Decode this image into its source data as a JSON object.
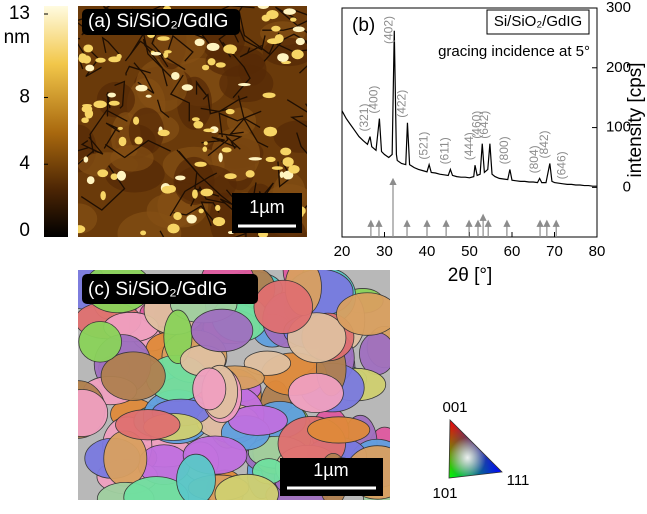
{
  "panel_a": {
    "label": "(a) Si/SiO₂/GdIG",
    "scale_bar": "1µm",
    "colorbar": {
      "unit": "nm",
      "lim": [
        0,
        13
      ],
      "ticks": [
        0,
        4,
        8,
        13
      ]
    }
  },
  "chart_data": {
    "type": "line",
    "title": "(b)",
    "inset_label": "Si/SiO₂/GdIG",
    "annotation": "gracing incidence at 5°",
    "x_label": "2θ [°]",
    "y_label": "intensity [cps]",
    "xlim": [
      20,
      80
    ],
    "xticks": [
      20,
      30,
      40,
      50,
      60,
      70,
      80
    ],
    "ylim": [
      -83,
      300
    ],
    "yticks": [
      0,
      100,
      200,
      300
    ],
    "y_axis_side": "right",
    "x": [
      20,
      21,
      22,
      23,
      24,
      25,
      26,
      26.6,
      27,
      28,
      28.8,
      29.3,
      30,
      31,
      31.8,
      32.3,
      32.8,
      33,
      34,
      35,
      35.4,
      35.9,
      37,
      38,
      39,
      40,
      40.5,
      41,
      42,
      43,
      44,
      45,
      45.5,
      46,
      47,
      48,
      49,
      50,
      51,
      51.3,
      51.8,
      52.5,
      53,
      53.5,
      54.3,
      54.8,
      55.3,
      56,
      57,
      58,
      59,
      59.5,
      60,
      61,
      62,
      63,
      64,
      65,
      66,
      66.5,
      67,
      68,
      68.9,
      69.4,
      70,
      71,
      72,
      73,
      74,
      75,
      76,
      77,
      78,
      79,
      80
    ],
    "series": [
      {
        "color": "#000000",
        "values": [
          128,
          115,
          105,
          95,
          85,
          78,
          72,
          85,
          68,
          62,
          115,
          60,
          55,
          50,
          55,
          262,
          55,
          45,
          40,
          38,
          108,
          38,
          33,
          30,
          28,
          26,
          38,
          25,
          24,
          22,
          21,
          20,
          30,
          20,
          18,
          17,
          17,
          16,
          18,
          37,
          20,
          22,
          73,
          25,
          30,
          73,
          22,
          18,
          15,
          14,
          13,
          30,
          12,
          11,
          10,
          10,
          9,
          9,
          8,
          15,
          8,
          8,
          40,
          10,
          8,
          7,
          6,
          5,
          5,
          4,
          4,
          3,
          3,
          2,
          2
        ]
      }
    ],
    "peak_labels": {
      "color": "#8c8c8c",
      "labels": [
        "(321)",
        "(400)",
        "(402)",
        "(422)",
        "(521)",
        "(611)",
        "(444)",
        "(460)",
        "(642)",
        "(800)",
        "(804)",
        "(842)",
        "(646)"
      ],
      "x": [
        26.6,
        28.8,
        32.3,
        35.4,
        40.5,
        45.5,
        51.3,
        53,
        54.8,
        59.5,
        66.5,
        68.9,
        73
      ]
    },
    "reference": {
      "color": "#8c8c8c",
      "x": [
        26.8,
        28.7,
        32,
        35.3,
        40,
        44.5,
        49.9,
        52,
        53.2,
        54.4,
        58.8,
        66.6,
        68.2,
        70.4
      ],
      "values": [
        -60,
        -60,
        10,
        -60,
        -60,
        -60,
        -60,
        -60,
        -50,
        -60,
        -60,
        -60,
        -60,
        -60
      ]
    }
  },
  "panel_c": {
    "label": "(c) Si/SiO₂/GdIG",
    "scale_bar": "1µm",
    "triangle": {
      "top": "001",
      "left": "101",
      "right": "111"
    }
  }
}
